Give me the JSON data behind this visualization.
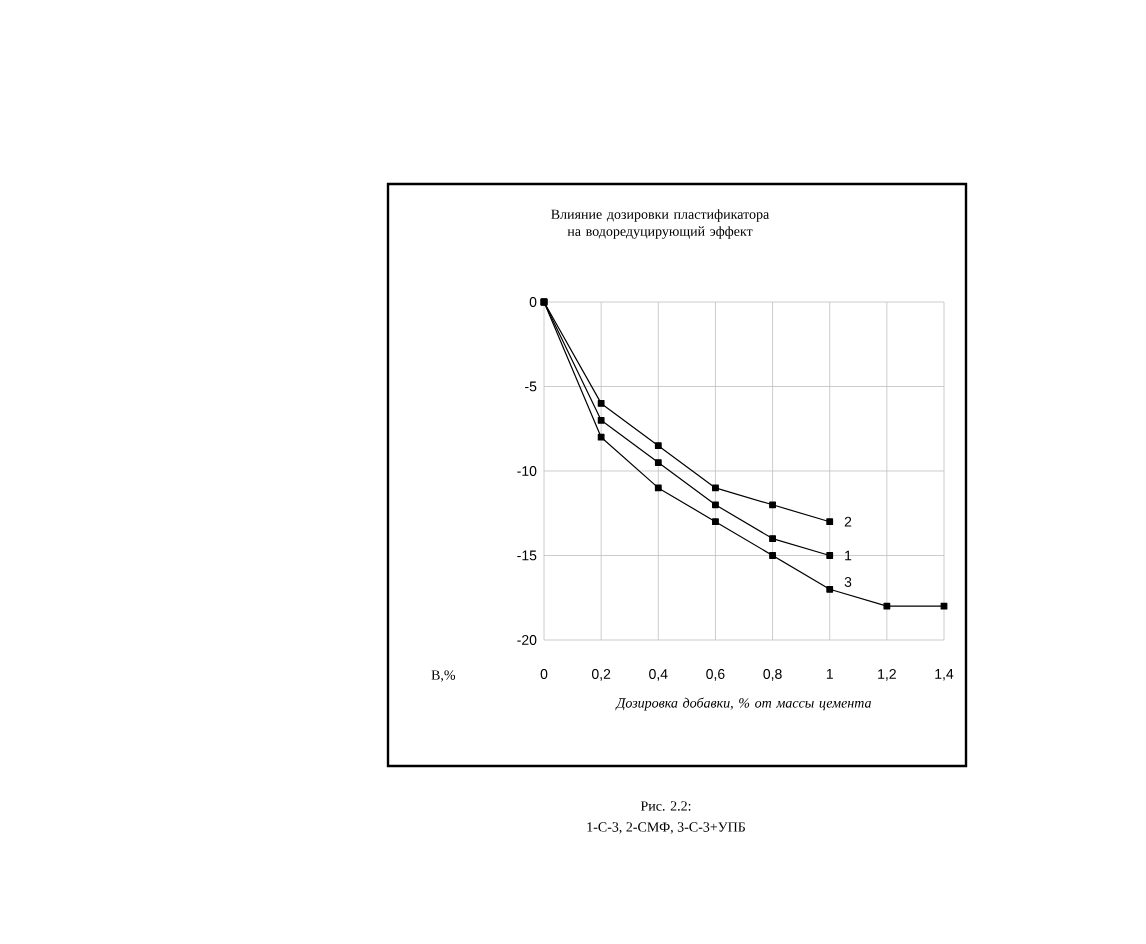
{
  "chart_data": {
    "type": "line",
    "title": "Влияние дозировки пластификатора на водоредуцирующий эффект",
    "xlabel": "Дозировка добавки, % от массы цемента",
    "ylabel": "В,%",
    "annotations": [
      "Рис. 2.2:",
      "1-С-3, 2-СМФ, 3-С-3+УПБ"
    ],
    "x": [
      0,
      0.2,
      0.4,
      0.6,
      0.8,
      1
    ],
    "series": [
      {
        "name": "2",
        "color": "#000000",
        "values": [
          0,
          -6,
          -8.5,
          -11,
          -12,
          -13
        ]
      },
      {
        "name": "1",
        "color": "#000000",
        "values": [
          0,
          -7,
          -9.5,
          -12,
          -14,
          -15
        ]
      },
      {
        "name": "3",
        "color": "#000000",
        "x": [
          0,
          0.2,
          0.4,
          0.6,
          0.8,
          1,
          1.2,
          1.4
        ],
        "values": [
          0,
          -8,
          -11,
          -13,
          -15,
          -17,
          -18,
          -18
        ]
      }
    ],
    "xlim": [
      0,
      1.4
    ],
    "ylim": [
      -20,
      0
    ],
    "xticks": [
      0,
      {
        "value": 0.2,
        "label": "0,2"
      },
      {
        "value": 0.4,
        "label": "0,4"
      },
      {
        "value": 0.6,
        "label": "0,6"
      },
      {
        "value": 0.8,
        "label": "0,8"
      },
      1,
      {
        "value": 1.2,
        "label": "1,2"
      },
      {
        "value": 1.4,
        "label": "1,4"
      }
    ],
    "yticks": [
      0,
      -5,
      -10,
      -15,
      -20
    ],
    "grid": true,
    "marker": "square",
    "line_style": "solid"
  }
}
